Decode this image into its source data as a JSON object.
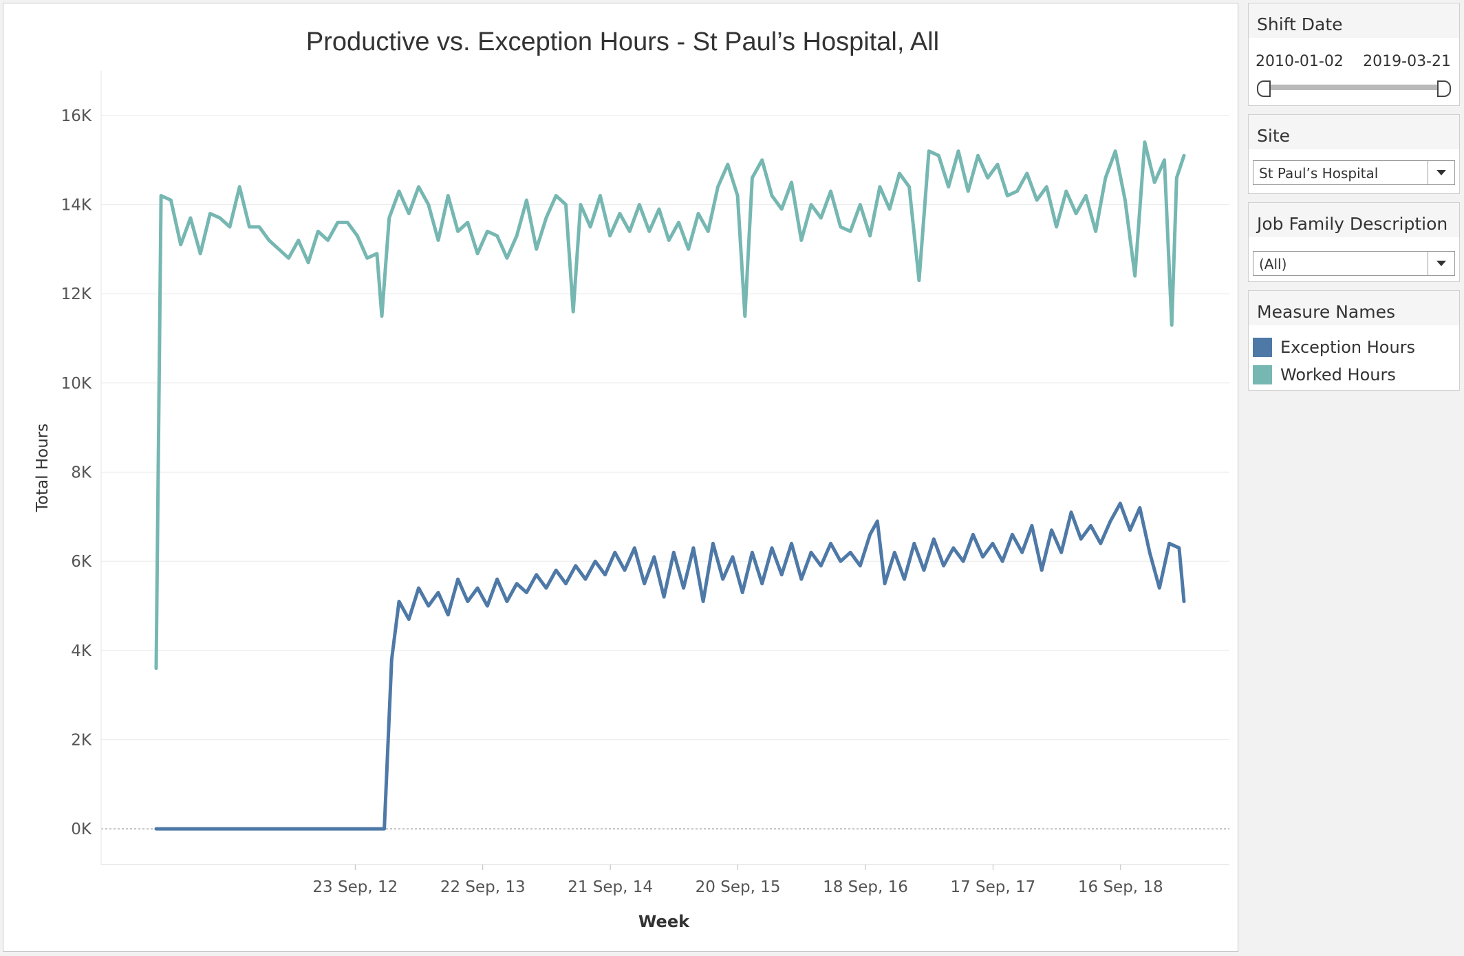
{
  "colors": {
    "exception": "#4e79a7",
    "worked": "#76b7b2"
  },
  "filters": {
    "shift_date": {
      "title": "Shift Date",
      "start": "2010-01-02",
      "end": "2019-03-21"
    },
    "site": {
      "title": "Site",
      "value": "St Paul’s Hospital"
    },
    "job_family": {
      "title": "Job Family Description",
      "value": "(All)"
    }
  },
  "legend": {
    "title": "Measure Names",
    "items": [
      {
        "label": "Exception Hours",
        "color": "#4e79a7"
      },
      {
        "label": "Worked Hours",
        "color": "#76b7b2"
      }
    ]
  },
  "chart_data": {
    "type": "line",
    "title": "Productive vs. Exception Hours - St Paul’s Hospital, All",
    "xlabel": "Week",
    "ylabel": "Total Hours",
    "x_range": [
      "2011-03-05",
      "2019-03-16"
    ],
    "ylim": [
      -800,
      17000
    ],
    "y_ticks": [
      0,
      2000,
      4000,
      6000,
      8000,
      10000,
      12000,
      14000,
      16000
    ],
    "y_tick_labels": [
      "0K",
      "2K",
      "4K",
      "6K",
      "8K",
      "10K",
      "12K",
      "14K",
      "16K"
    ],
    "x_ticks": [
      "2012-09-23",
      "2013-09-22",
      "2014-09-21",
      "2015-09-20",
      "2016-09-18",
      "2017-09-17",
      "2018-09-16"
    ],
    "x_tick_labels": [
      "23 Sep, 12",
      "22 Sep, 13",
      "21 Sep, 14",
      "20 Sep, 15",
      "18 Sep, 16",
      "17 Sep, 17",
      "16 Sep, 18"
    ],
    "grid": true,
    "zero_line": true,
    "legend_position": "right",
    "series": [
      {
        "name": "Worked Hours",
        "color": "#76b7b2",
        "points": [
          [
            "2011-03-05",
            3600
          ],
          [
            "2011-03-19",
            14200
          ],
          [
            "2011-04-16",
            14100
          ],
          [
            "2011-05-14",
            13100
          ],
          [
            "2011-06-11",
            13700
          ],
          [
            "2011-07-09",
            12900
          ],
          [
            "2011-08-06",
            13800
          ],
          [
            "2011-09-03",
            13700
          ],
          [
            "2011-10-01",
            13500
          ],
          [
            "2011-10-29",
            14400
          ],
          [
            "2011-11-26",
            13500
          ],
          [
            "2011-12-24",
            13500
          ],
          [
            "2012-01-21",
            13200
          ],
          [
            "2012-02-18",
            13000
          ],
          [
            "2012-03-17",
            12800
          ],
          [
            "2012-04-14",
            13200
          ],
          [
            "2012-05-12",
            12700
          ],
          [
            "2012-06-09",
            13400
          ],
          [
            "2012-07-07",
            13200
          ],
          [
            "2012-08-04",
            13600
          ],
          [
            "2012-09-01",
            13600
          ],
          [
            "2012-09-29",
            13300
          ],
          [
            "2012-10-27",
            12800
          ],
          [
            "2012-11-24",
            12900
          ],
          [
            "2012-12-08",
            11500
          ],
          [
            "2012-12-29",
            13700
          ],
          [
            "2013-01-26",
            14300
          ],
          [
            "2013-02-23",
            13800
          ],
          [
            "2013-03-23",
            14400
          ],
          [
            "2013-04-20",
            14000
          ],
          [
            "2013-05-18",
            13200
          ],
          [
            "2013-06-15",
            14200
          ],
          [
            "2013-07-13",
            13400
          ],
          [
            "2013-08-10",
            13600
          ],
          [
            "2013-09-07",
            12900
          ],
          [
            "2013-10-05",
            13400
          ],
          [
            "2013-11-02",
            13300
          ],
          [
            "2013-11-30",
            12800
          ],
          [
            "2013-12-28",
            13300
          ],
          [
            "2014-01-25",
            14100
          ],
          [
            "2014-02-22",
            13000
          ],
          [
            "2014-03-22",
            13700
          ],
          [
            "2014-04-19",
            14200
          ],
          [
            "2014-05-17",
            14000
          ],
          [
            "2014-06-07",
            11600
          ],
          [
            "2014-06-28",
            14000
          ],
          [
            "2014-07-26",
            13500
          ],
          [
            "2014-08-23",
            14200
          ],
          [
            "2014-09-20",
            13300
          ],
          [
            "2014-10-18",
            13800
          ],
          [
            "2014-11-15",
            13400
          ],
          [
            "2014-12-13",
            14000
          ],
          [
            "2015-01-10",
            13400
          ],
          [
            "2015-02-07",
            13900
          ],
          [
            "2015-03-07",
            13200
          ],
          [
            "2015-04-04",
            13600
          ],
          [
            "2015-05-02",
            13000
          ],
          [
            "2015-05-30",
            13800
          ],
          [
            "2015-06-27",
            13400
          ],
          [
            "2015-07-25",
            14400
          ],
          [
            "2015-08-22",
            14900
          ],
          [
            "2015-09-19",
            14200
          ],
          [
            "2015-10-10",
            11500
          ],
          [
            "2015-10-31",
            14600
          ],
          [
            "2015-11-28",
            15000
          ],
          [
            "2015-12-26",
            14200
          ],
          [
            "2016-01-23",
            13900
          ],
          [
            "2016-02-20",
            14500
          ],
          [
            "2016-03-19",
            13200
          ],
          [
            "2016-04-16",
            14000
          ],
          [
            "2016-05-14",
            13700
          ],
          [
            "2016-06-11",
            14300
          ],
          [
            "2016-07-09",
            13500
          ],
          [
            "2016-08-06",
            13400
          ],
          [
            "2016-09-03",
            14000
          ],
          [
            "2016-10-01",
            13300
          ],
          [
            "2016-10-29",
            14400
          ],
          [
            "2016-11-26",
            13900
          ],
          [
            "2016-12-24",
            14700
          ],
          [
            "2017-01-21",
            14400
          ],
          [
            "2017-02-18",
            12300
          ],
          [
            "2017-03-18",
            15200
          ],
          [
            "2017-04-15",
            15100
          ],
          [
            "2017-05-13",
            14400
          ],
          [
            "2017-06-10",
            15200
          ],
          [
            "2017-07-08",
            14300
          ],
          [
            "2017-08-05",
            15100
          ],
          [
            "2017-09-02",
            14600
          ],
          [
            "2017-09-30",
            14900
          ],
          [
            "2017-10-28",
            14200
          ],
          [
            "2017-11-25",
            14300
          ],
          [
            "2017-12-23",
            14700
          ],
          [
            "2018-01-20",
            14100
          ],
          [
            "2018-02-17",
            14400
          ],
          [
            "2018-03-17",
            13500
          ],
          [
            "2018-04-14",
            14300
          ],
          [
            "2018-05-12",
            13800
          ],
          [
            "2018-06-09",
            14200
          ],
          [
            "2018-07-07",
            13400
          ],
          [
            "2018-08-04",
            14600
          ],
          [
            "2018-09-01",
            15200
          ],
          [
            "2018-09-29",
            14100
          ],
          [
            "2018-10-27",
            12400
          ],
          [
            "2018-11-24",
            15400
          ],
          [
            "2018-12-22",
            14500
          ],
          [
            "2019-01-19",
            15000
          ],
          [
            "2019-02-09",
            11300
          ],
          [
            "2019-02-23",
            14600
          ],
          [
            "2019-03-16",
            15100
          ]
        ]
      },
      {
        "name": "Exception Hours",
        "color": "#4e79a7",
        "points": [
          [
            "2011-03-05",
            0
          ],
          [
            "2012-12-15",
            0
          ],
          [
            "2013-01-05",
            3800
          ],
          [
            "2013-01-26",
            5100
          ],
          [
            "2013-02-23",
            4700
          ],
          [
            "2013-03-23",
            5400
          ],
          [
            "2013-04-20",
            5000
          ],
          [
            "2013-05-18",
            5300
          ],
          [
            "2013-06-15",
            4800
          ],
          [
            "2013-07-13",
            5600
          ],
          [
            "2013-08-10",
            5100
          ],
          [
            "2013-09-07",
            5400
          ],
          [
            "2013-10-05",
            5000
          ],
          [
            "2013-11-02",
            5600
          ],
          [
            "2013-11-30",
            5100
          ],
          [
            "2013-12-28",
            5500
          ],
          [
            "2014-01-25",
            5300
          ],
          [
            "2014-02-22",
            5700
          ],
          [
            "2014-03-22",
            5400
          ],
          [
            "2014-04-19",
            5800
          ],
          [
            "2014-05-17",
            5500
          ],
          [
            "2014-06-14",
            5900
          ],
          [
            "2014-07-12",
            5600
          ],
          [
            "2014-08-09",
            6000
          ],
          [
            "2014-09-06",
            5700
          ],
          [
            "2014-10-04",
            6200
          ],
          [
            "2014-11-01",
            5800
          ],
          [
            "2014-11-29",
            6300
          ],
          [
            "2014-12-27",
            5500
          ],
          [
            "2015-01-24",
            6100
          ],
          [
            "2015-02-21",
            5200
          ],
          [
            "2015-03-21",
            6200
          ],
          [
            "2015-04-18",
            5400
          ],
          [
            "2015-05-16",
            6300
          ],
          [
            "2015-06-13",
            5100
          ],
          [
            "2015-07-11",
            6400
          ],
          [
            "2015-08-08",
            5600
          ],
          [
            "2015-09-05",
            6100
          ],
          [
            "2015-10-03",
            5300
          ],
          [
            "2015-10-31",
            6200
          ],
          [
            "2015-11-28",
            5500
          ],
          [
            "2015-12-26",
            6300
          ],
          [
            "2016-01-23",
            5700
          ],
          [
            "2016-02-20",
            6400
          ],
          [
            "2016-03-19",
            5600
          ],
          [
            "2016-04-16",
            6200
          ],
          [
            "2016-05-14",
            5900
          ],
          [
            "2016-06-11",
            6400
          ],
          [
            "2016-07-09",
            6000
          ],
          [
            "2016-08-06",
            6200
          ],
          [
            "2016-09-03",
            5900
          ],
          [
            "2016-10-01",
            6600
          ],
          [
            "2016-10-22",
            6900
          ],
          [
            "2016-11-12",
            5500
          ],
          [
            "2016-12-10",
            6200
          ],
          [
            "2017-01-07",
            5600
          ],
          [
            "2017-02-04",
            6400
          ],
          [
            "2017-03-04",
            5800
          ],
          [
            "2017-04-01",
            6500
          ],
          [
            "2017-04-29",
            5900
          ],
          [
            "2017-05-27",
            6300
          ],
          [
            "2017-06-24",
            6000
          ],
          [
            "2017-07-22",
            6600
          ],
          [
            "2017-08-19",
            6100
          ],
          [
            "2017-09-16",
            6400
          ],
          [
            "2017-10-14",
            6000
          ],
          [
            "2017-11-11",
            6600
          ],
          [
            "2017-12-09",
            6200
          ],
          [
            "2018-01-06",
            6800
          ],
          [
            "2018-02-03",
            5800
          ],
          [
            "2018-03-03",
            6700
          ],
          [
            "2018-03-31",
            6200
          ],
          [
            "2018-04-28",
            7100
          ],
          [
            "2018-05-26",
            6500
          ],
          [
            "2018-06-23",
            6800
          ],
          [
            "2018-07-21",
            6400
          ],
          [
            "2018-08-18",
            6900
          ],
          [
            "2018-09-15",
            7300
          ],
          [
            "2018-10-13",
            6700
          ],
          [
            "2018-11-10",
            7200
          ],
          [
            "2018-12-08",
            6200
          ],
          [
            "2019-01-05",
            5400
          ],
          [
            "2019-02-02",
            6400
          ],
          [
            "2019-03-02",
            6300
          ],
          [
            "2019-03-16",
            5100
          ]
        ]
      }
    ]
  }
}
